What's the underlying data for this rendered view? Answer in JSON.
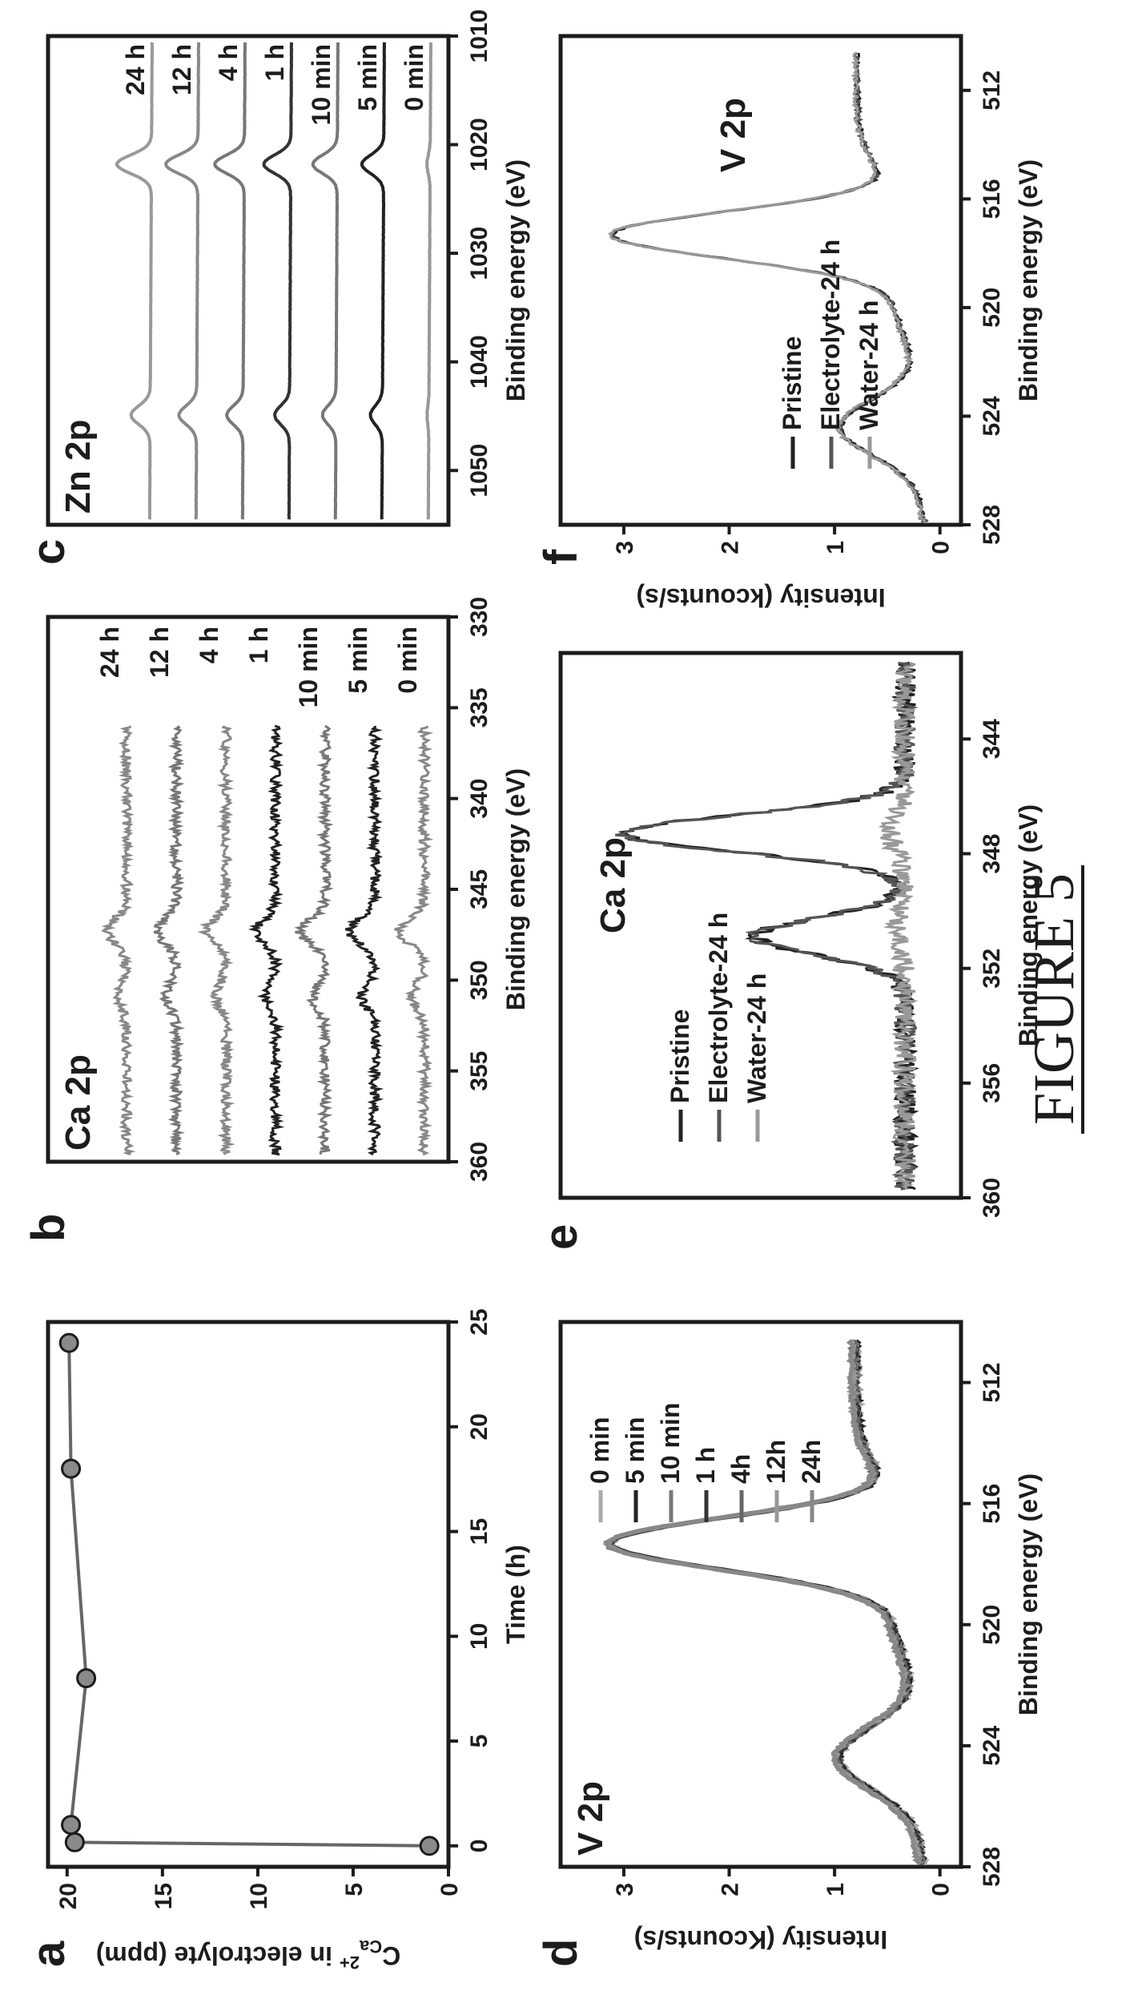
{
  "figure_caption": "FIGURE 5",
  "panel_letters": [
    "a",
    "b",
    "c",
    "d",
    "e",
    "f"
  ],
  "chart_data": [
    {
      "id": "a",
      "type": "scatter",
      "title": "",
      "xlabel": "Time (h)",
      "ylabel_prefix": "C",
      "ylabel_sub": "Ca",
      "ylabel_sup": "2+",
      "ylabel_suffix": " in electrolyte (ppm)",
      "xlim": [
        -1,
        25
      ],
      "ylim": [
        0,
        21
      ],
      "xticks": [
        0,
        5,
        10,
        15,
        20,
        25
      ],
      "yticks": [
        0,
        5,
        10,
        15,
        20
      ],
      "x": [
        0,
        0.17,
        1,
        8,
        18,
        24
      ],
      "y": [
        1.0,
        19.6,
        19.8,
        19.0,
        19.8,
        19.9
      ],
      "color": "#666666"
    },
    {
      "id": "b",
      "type": "line",
      "title": "Ca 2p",
      "xlabel": "Binding energy (eV)",
      "ylabel": "",
      "xlim": [
        360,
        330
      ],
      "xticks": [
        360,
        355,
        350,
        345,
        340,
        335,
        330
      ],
      "series": [
        {
          "name": "0 min",
          "color": "#888888"
        },
        {
          "name": "5 min",
          "color": "#222222"
        },
        {
          "name": "10 min",
          "color": "#777777"
        },
        {
          "name": "1 h",
          "color": "#222222"
        },
        {
          "name": "4 h",
          "color": "#888888"
        },
        {
          "name": "12 h",
          "color": "#777777"
        },
        {
          "name": "24 h",
          "color": "#888888"
        }
      ]
    },
    {
      "id": "c",
      "type": "line",
      "title": "Zn 2p",
      "xlabel": "Binding energy (eV)",
      "ylabel": "",
      "xlim": [
        1055,
        1010
      ],
      "xticks": [
        1050,
        1040,
        1030,
        1020,
        1010
      ],
      "series": [
        {
          "name": "0 min",
          "color": "#999999"
        },
        {
          "name": "5 min",
          "color": "#222222"
        },
        {
          "name": "10 min",
          "color": "#777777"
        },
        {
          "name": "1 h",
          "color": "#333333"
        },
        {
          "name": "4 h",
          "color": "#777777"
        },
        {
          "name": "12 h",
          "color": "#888888"
        },
        {
          "name": "24 h",
          "color": "#999999"
        }
      ]
    },
    {
      "id": "d",
      "type": "line",
      "title": "V 2p",
      "xlabel": "Binding energy (eV)",
      "ylabel": "Intensity (Kcounts/s)",
      "xlim": [
        528,
        510
      ],
      "ylim": [
        -0.2,
        3.6
      ],
      "xticks": [
        528,
        524,
        520,
        516,
        512
      ],
      "yticks": [
        0,
        1,
        2,
        3
      ],
      "series": [
        {
          "name": "0 min",
          "color": "#aaaaaa"
        },
        {
          "name": "5 min",
          "color": "#222222"
        },
        {
          "name": "10 min",
          "color": "#777777"
        },
        {
          "name": "1 h",
          "color": "#333333"
        },
        {
          "name": "4h",
          "color": "#666666"
        },
        {
          "name": "12h",
          "color": "#999999"
        },
        {
          "name": "24h",
          "color": "#888888"
        }
      ]
    },
    {
      "id": "e",
      "type": "line",
      "title": "Ca 2p",
      "xlabel": "Binding energy (eV)",
      "ylabel": "",
      "xlim": [
        360,
        341
      ],
      "xticks": [
        360,
        356,
        352,
        348,
        344
      ],
      "series": [
        {
          "name": "Pristine",
          "color": "#222222"
        },
        {
          "name": "Electrolyte-24 h",
          "color": "#555555"
        },
        {
          "name": "Water-24 h",
          "color": "#999999"
        }
      ]
    },
    {
      "id": "f",
      "type": "line",
      "title": "V 2p",
      "xlabel": "Binding energy (eV)",
      "ylabel": "Intensity (kcounts/s)",
      "xlim": [
        528,
        510
      ],
      "ylim": [
        -0.2,
        3.6
      ],
      "xticks": [
        528,
        524,
        520,
        516,
        512
      ],
      "yticks": [
        0,
        1,
        2,
        3
      ],
      "series": [
        {
          "name": "Pristine",
          "color": "#222222"
        },
        {
          "name": "Electrolyte-24 h",
          "color": "#555555"
        },
        {
          "name": "Water-24 h",
          "color": "#999999"
        }
      ]
    }
  ]
}
